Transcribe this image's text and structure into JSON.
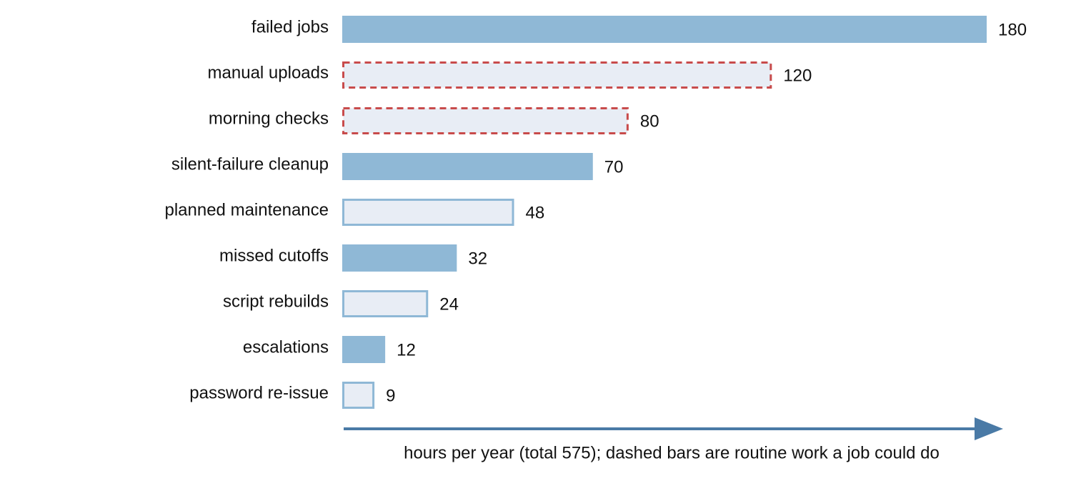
{
  "chart_data": {
    "type": "hbar",
    "categories": [
      "failed jobs",
      "manual uploads",
      "morning checks",
      "silent-failure cleanup",
      "planned maintenance",
      "missed cutoffs",
      "script rebuilds",
      "escalations",
      "password re-issue"
    ],
    "values": [
      180,
      120,
      80,
      70,
      48,
      32,
      24,
      12,
      9
    ],
    "styles": [
      "solid",
      "dashed",
      "dashed",
      "solid",
      "outline",
      "solid",
      "outline",
      "solid",
      "outline"
    ],
    "colors": {
      "solid": "#8fb8d6",
      "outline_fill": "#e8edf5",
      "outline_stroke": "#8fb8d6",
      "dashed_stroke": "#c84b4b"
    },
    "axis_color": "#4a7aa6",
    "xlim": [
      0,
      180
    ],
    "x_label": "hours per year (total 575); dashed bars are routine work a job could do"
  }
}
